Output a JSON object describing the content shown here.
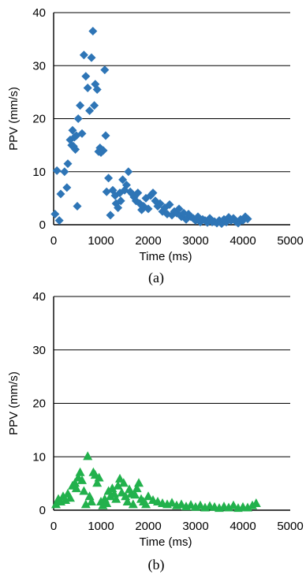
{
  "chart_data": [
    {
      "type": "scatter",
      "caption": "(a)",
      "xlabel": "Time (ms)",
      "ylabel": "PPV (mm/s)",
      "xlim": [
        0,
        5000
      ],
      "ylim": [
        0,
        40
      ],
      "xticks": [
        "0",
        "1000",
        "2000",
        "3000",
        "4000",
        "5000"
      ],
      "yticks": [
        "0",
        "10",
        "20",
        "30",
        "40"
      ],
      "grid": "horizontal",
      "marker": "diamond",
      "color": "#2e75b6",
      "series": [
        {
          "x": [
            30,
            70,
            120,
            150,
            230,
            280,
            300,
            350,
            380,
            400,
            420,
            440,
            460,
            480,
            500,
            520,
            560,
            600,
            640,
            680,
            720,
            760,
            800,
            830,
            860,
            880,
            920,
            950,
            980,
            1000,
            1050,
            1080,
            1100,
            1120,
            1160,
            1200,
            1250,
            1300,
            1320,
            1360,
            1400,
            1420,
            1460,
            1500,
            1540,
            1580,
            1620,
            1660,
            1700,
            1740,
            1780,
            1820,
            1860,
            1900,
            1950,
            2000,
            2050,
            2100,
            2150,
            2200,
            2250,
            2300,
            2350,
            2400,
            2450,
            2500,
            2550,
            2600,
            2650,
            2700,
            2750,
            2800,
            2850,
            2900,
            2950,
            3000,
            3050,
            3100,
            3150,
            3200,
            3250,
            3300,
            3350,
            3400,
            3450,
            3500,
            3550,
            3600,
            3650,
            3700,
            3750,
            3800,
            3850,
            3900,
            3950,
            4000,
            4050,
            4100
          ],
          "y": [
            2.0,
            10.2,
            0.8,
            5.8,
            10.0,
            7.0,
            11.5,
            16.0,
            15.0,
            17.8,
            14.8,
            16.5,
            14.2,
            16.8,
            3.5,
            20.0,
            22.5,
            17.2,
            32.0,
            28.0,
            25.8,
            21.5,
            31.5,
            36.5,
            22.5,
            26.5,
            25.5,
            13.8,
            14.5,
            13.6,
            14.0,
            29.2,
            16.8,
            6.2,
            8.8,
            1.8,
            6.5,
            5.5,
            4.0,
            3.2,
            6.0,
            4.5,
            8.5,
            6.5,
            7.5,
            10.0,
            6.2,
            5.8,
            5.2,
            4.5,
            6.0,
            4.0,
            2.8,
            3.5,
            5.0,
            3.0,
            5.5,
            6.0,
            4.5,
            3.5,
            4.0,
            2.5,
            3.2,
            2.0,
            3.8,
            1.8,
            2.5,
            2.2,
            3.0,
            1.5,
            2.2,
            1.0,
            2.0,
            1.5,
            1.2,
            0.8,
            1.5,
            0.5,
            1.0,
            0.8,
            0.4,
            1.2,
            0.5,
            0.6,
            0.3,
            0.8,
            0.2,
            1.0,
            0.5,
            1.4,
            0.8,
            1.2,
            0.6,
            0.3,
            1.0,
            0.8,
            1.5,
            1.1
          ]
        }
      ]
    },
    {
      "type": "scatter",
      "caption": "(b)",
      "xlabel": "Time (ms)",
      "ylabel": "PPV (mm/s)",
      "xlim": [
        0,
        5000
      ],
      "ylim": [
        0,
        40
      ],
      "xticks": [
        "0",
        "1000",
        "2000",
        "3000",
        "4000",
        "5000"
      ],
      "yticks": [
        "0",
        "10",
        "20",
        "30",
        "40"
      ],
      "grid": "horizontal",
      "marker": "triangle",
      "color": "#22b14c",
      "series": [
        {
          "x": [
            50,
            100,
            150,
            200,
            250,
            300,
            350,
            400,
            450,
            480,
            520,
            560,
            600,
            640,
            680,
            720,
            760,
            800,
            840,
            880,
            920,
            960,
            1000,
            1040,
            1080,
            1120,
            1160,
            1200,
            1240,
            1280,
            1320,
            1360,
            1400,
            1440,
            1480,
            1520,
            1560,
            1600,
            1640,
            1680,
            1720,
            1760,
            1800,
            1850,
            1900,
            1950,
            2000,
            2100,
            2200,
            2300,
            2400,
            2500,
            2600,
            2700,
            2800,
            2900,
            3000,
            3100,
            3200,
            3300,
            3400,
            3500,
            3600,
            3700,
            3800,
            3900,
            4000,
            4100,
            4200,
            4280
          ],
          "y": [
            1.0,
            2.0,
            1.5,
            2.5,
            1.8,
            3.0,
            2.2,
            4.5,
            5.0,
            4.0,
            6.0,
            7.0,
            5.5,
            3.5,
            1.0,
            10.0,
            2.5,
            1.5,
            7.0,
            6.5,
            5.0,
            6.0,
            1.5,
            0.8,
            2.0,
            1.2,
            3.5,
            2.5,
            4.0,
            3.0,
            2.0,
            4.5,
            5.8,
            3.2,
            5.0,
            2.5,
            1.5,
            3.8,
            3.0,
            1.0,
            2.8,
            4.0,
            5.0,
            2.0,
            1.5,
            1.0,
            2.5,
            1.8,
            1.5,
            1.2,
            1.0,
            1.3,
            0.8,
            1.0,
            0.6,
            0.9,
            0.5,
            0.8,
            0.4,
            0.7,
            0.5,
            0.3,
            0.6,
            0.4,
            0.8,
            0.3,
            0.5,
            0.4,
            0.8,
            1.2
          ]
        }
      ]
    }
  ]
}
